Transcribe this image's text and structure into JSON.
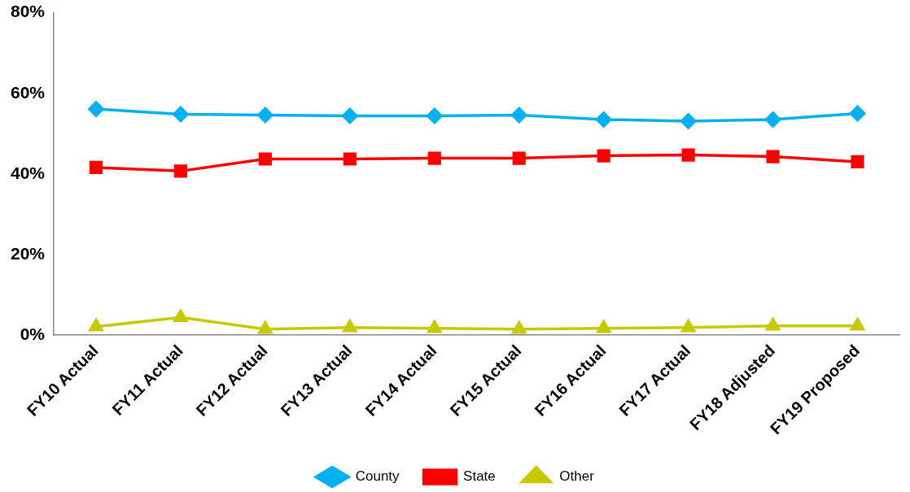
{
  "chart_data": {
    "type": "line",
    "categories": [
      "FY10 Actual",
      "FY11 Actual",
      "FY12 Actual",
      "FY13 Actual",
      "FY14 Actual",
      "FY15 Actual",
      "FY16 Actual",
      "FY17 Actual",
      "FY18 Adjusted",
      "FY19 Proposed"
    ],
    "series": [
      {
        "name": "County",
        "color": "#00b0f0",
        "marker": "diamond",
        "values": [
          56.1,
          54.8,
          54.6,
          54.4,
          54.4,
          54.6,
          53.5,
          53.1,
          53.5,
          55.0
        ]
      },
      {
        "name": "State",
        "color": "#ff0000",
        "marker": "square",
        "values": [
          41.6,
          40.7,
          43.7,
          43.7,
          43.9,
          43.9,
          44.5,
          44.7,
          44.3,
          43.0
        ]
      },
      {
        "name": "Other",
        "color": "#c8c800",
        "marker": "triangle",
        "values": [
          2.1,
          4.4,
          1.5,
          1.9,
          1.7,
          1.5,
          1.7,
          1.9,
          2.3,
          2.3
        ]
      }
    ],
    "ylim": [
      0,
      80
    ],
    "yticks": [
      {
        "value": 0,
        "label": "0%"
      },
      {
        "value": 20,
        "label": "20%"
      },
      {
        "value": 40,
        "label": "40%"
      },
      {
        "value": 60,
        "label": "60%"
      },
      {
        "value": 80,
        "label": "80%"
      }
    ],
    "grid": false,
    "legend": "bottom",
    "line_style": "solid"
  }
}
